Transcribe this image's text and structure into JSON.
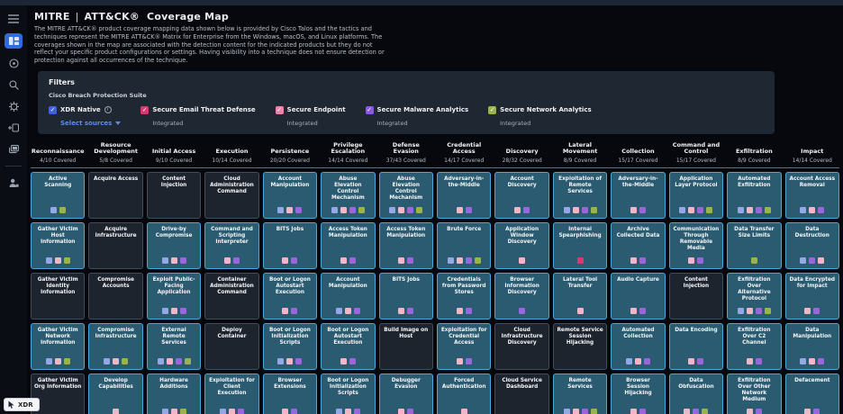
{
  "header": {
    "brand": "MITRE",
    "brand_sep": "|",
    "brand_product": "ATT&CK®",
    "title": "Coverage Map",
    "description": "The MITRE ATT&CK® product coverage mapping data shown below is provided by Cisco Talos and the tactics and techniques represent the MITRE ATT&CK® Matrix for Enterprise from the Windows, macOS, and Linux platforms. The coverages shown in the map are associated with the detection content for the indicated products but they do not reflect your specific product configurations or settings. Having visibility into a technique does not ensure detection or protection against all occurrences of the technique."
  },
  "sidebar": {
    "icons": [
      "menu-icon",
      "coverage-map-icon",
      "target-icon",
      "search-icon",
      "gear-icon",
      "add-device-icon",
      "layers-icon",
      "user-icon"
    ],
    "active_icon": "coverage-map-icon",
    "active_color": "#2f6ae0"
  },
  "filters": {
    "title": "Filters",
    "subtitle": "Cisco Breach Protection Suite",
    "sources": [
      {
        "label": "XDR Native",
        "color": "#3f64d9",
        "info": true,
        "link_label": "Select sources"
      },
      {
        "label": "Secure Email Threat Defense",
        "color": "#d63a71",
        "status": "Integrated"
      },
      {
        "label": "Secure Endpoint",
        "color": "#ee82a8",
        "status": "Integrated"
      },
      {
        "label": "Secure Malware Analytics",
        "color": "#8a57e0",
        "status": "Integrated"
      },
      {
        "label": "Secure Network Analytics",
        "color": "#9cb24d",
        "status": "Integrated"
      }
    ]
  },
  "product_colors": {
    "blue": "#94a7e6",
    "pink": "#f2b6c6",
    "purple": "#9a66dd",
    "green": "#9cb24d",
    "crimson": "#d63a71"
  },
  "cell_colors": {
    "covered_bg": "#2b5b71",
    "covered_border": "#4aa9d9",
    "uncovered_bg": "#1e242e",
    "uncovered_border": "#424c5a"
  },
  "cursor_badge": {
    "label": "XDR"
  },
  "matrix": {
    "columns": [
      {
        "name": "Reconnaissance",
        "covered": "4/10 Covered",
        "cells": [
          {
            "name": "Active Scanning",
            "covered": true,
            "products": [
              "blue",
              "green"
            ]
          },
          {
            "name": "Gather Victim Host Information",
            "covered": true,
            "products": [
              "blue",
              "pink",
              "green"
            ]
          },
          {
            "name": "Gather Victim Identity Information",
            "covered": false,
            "products": []
          },
          {
            "name": "Gather Victim Network Information",
            "covered": true,
            "products": [
              "blue",
              "pink",
              "green"
            ]
          },
          {
            "name": "Gather Victim Org Information",
            "covered": false,
            "products": []
          }
        ]
      },
      {
        "name": "Resource Development",
        "covered": "5/8 Covered",
        "cells": [
          {
            "name": "Acquire Access",
            "covered": false,
            "products": []
          },
          {
            "name": "Acquire Infrastructure",
            "covered": false,
            "products": []
          },
          {
            "name": "Compromise Accounts",
            "covered": false,
            "products": []
          },
          {
            "name": "Compromise Infrastructure",
            "covered": true,
            "products": [
              "blue",
              "pink",
              "green"
            ]
          },
          {
            "name": "Develop Capabilities",
            "covered": true,
            "products": [
              "pink"
            ]
          }
        ]
      },
      {
        "name": "Initial Access",
        "covered": "9/10 Covered",
        "cells": [
          {
            "name": "Content Injection",
            "covered": false,
            "products": []
          },
          {
            "name": "Drive-by Compromise",
            "covered": true,
            "products": [
              "blue",
              "pink",
              "purple"
            ]
          },
          {
            "name": "Exploit Public-Facing Application",
            "covered": true,
            "products": [
              "blue",
              "pink",
              "purple"
            ]
          },
          {
            "name": "External Remote Services",
            "covered": true,
            "products": [
              "blue",
              "pink",
              "purple",
              "green"
            ]
          },
          {
            "name": "Hardware Additions",
            "covered": true,
            "products": [
              "blue",
              "pink",
              "green"
            ]
          }
        ]
      },
      {
        "name": "Execution",
        "covered": "10/14 Covered",
        "cells": [
          {
            "name": "Cloud Administration Command",
            "covered": false,
            "products": []
          },
          {
            "name": "Command and Scripting Interpreter",
            "covered": true,
            "products": [
              "pink",
              "purple"
            ]
          },
          {
            "name": "Container Administration Command",
            "covered": false,
            "products": []
          },
          {
            "name": "Deploy Container",
            "covered": false,
            "products": []
          },
          {
            "name": "Exploitation for Client Execution",
            "covered": true,
            "products": [
              "blue",
              "pink",
              "purple"
            ]
          }
        ]
      },
      {
        "name": "Persistence",
        "covered": "20/20 Covered",
        "cells": [
          {
            "name": "Account Manipulation",
            "covered": true,
            "products": [
              "blue",
              "pink",
              "purple"
            ]
          },
          {
            "name": "BITS Jobs",
            "covered": true,
            "products": [
              "pink",
              "purple"
            ]
          },
          {
            "name": "Boot or Logon Autostart Execution",
            "covered": true,
            "products": [
              "pink",
              "purple"
            ]
          },
          {
            "name": "Boot or Logon Initialization Scripts",
            "covered": true,
            "products": [
              "blue",
              "pink",
              "purple"
            ]
          },
          {
            "name": "Browser Extensions",
            "covered": true,
            "products": [
              "pink",
              "purple"
            ]
          }
        ]
      },
      {
        "name": "Privilege Escalation",
        "covered": "14/14 Covered",
        "cells": [
          {
            "name": "Abuse Elevation Control Mechanism",
            "covered": true,
            "products": [
              "blue",
              "pink",
              "purple",
              "green"
            ]
          },
          {
            "name": "Access Token Manipulation",
            "covered": true,
            "products": [
              "pink",
              "purple"
            ]
          },
          {
            "name": "Account Manipulation",
            "covered": true,
            "products": [
              "blue",
              "pink",
              "purple"
            ]
          },
          {
            "name": "Boot or Logon Autostart Execution",
            "covered": true,
            "products": [
              "pink",
              "purple"
            ]
          },
          {
            "name": "Boot or Logon Initialization Scripts",
            "covered": true,
            "products": [
              "blue",
              "pink",
              "purple"
            ]
          }
        ]
      },
      {
        "name": "Defense Evasion",
        "covered": "37/43 Covered",
        "cells": [
          {
            "name": "Abuse Elevation Control Mechanism",
            "covered": true,
            "products": [
              "blue",
              "pink",
              "purple",
              "green"
            ]
          },
          {
            "name": "Access Token Manipulation",
            "covered": true,
            "products": [
              "pink",
              "purple"
            ]
          },
          {
            "name": "BITS Jobs",
            "covered": true,
            "products": [
              "pink",
              "purple"
            ]
          },
          {
            "name": "Build Image on Host",
            "covered": false,
            "products": []
          },
          {
            "name": "Debugger Evasion",
            "covered": true,
            "products": [
              "pink",
              "purple"
            ]
          }
        ]
      },
      {
        "name": "Credential Access",
        "covered": "14/17 Covered",
        "cells": [
          {
            "name": "Adversary-in-the-Middle",
            "covered": true,
            "products": [
              "pink",
              "purple"
            ]
          },
          {
            "name": "Brute Force",
            "covered": true,
            "products": [
              "blue",
              "pink",
              "purple",
              "green"
            ]
          },
          {
            "name": "Credentials from Password Stores",
            "covered": true,
            "products": [
              "pink",
              "purple"
            ]
          },
          {
            "name": "Exploitation for Credential Access",
            "covered": true,
            "products": [
              "pink",
              "purple"
            ]
          },
          {
            "name": "Forced Authentication",
            "covered": true,
            "products": [
              "pink"
            ]
          }
        ]
      },
      {
        "name": "Discovery",
        "covered": "28/32 Covered",
        "cells": [
          {
            "name": "Account Discovery",
            "covered": true,
            "products": [
              "pink",
              "purple"
            ]
          },
          {
            "name": "Application Window Discovery",
            "covered": true,
            "products": [
              "pink"
            ]
          },
          {
            "name": "Browser Information Discovery",
            "covered": true,
            "products": [
              "purple"
            ]
          },
          {
            "name": "Cloud Infrastructure Discovery",
            "covered": false,
            "products": []
          },
          {
            "name": "Cloud Service Dashboard",
            "covered": false,
            "products": []
          }
        ]
      },
      {
        "name": "Lateral Movement",
        "covered": "8/9 Covered",
        "cells": [
          {
            "name": "Exploitation of Remote Services",
            "covered": true,
            "products": [
              "blue",
              "pink",
              "purple",
              "green"
            ]
          },
          {
            "name": "Internal Spearphishing",
            "covered": true,
            "products": [
              "crimson"
            ]
          },
          {
            "name": "Lateral Tool Transfer",
            "covered": true,
            "products": [
              "pink"
            ]
          },
          {
            "name": "Remote Service Session Hijacking",
            "covered": false,
            "products": []
          },
          {
            "name": "Remote Services",
            "covered": true,
            "products": [
              "blue",
              "pink",
              "purple",
              "green"
            ]
          }
        ]
      },
      {
        "name": "Collection",
        "covered": "15/17 Covered",
        "cells": [
          {
            "name": "Adversary-in-the-Middle",
            "covered": true,
            "products": [
              "pink",
              "purple"
            ]
          },
          {
            "name": "Archive Collected Data",
            "covered": true,
            "products": [
              "pink",
              "purple"
            ]
          },
          {
            "name": "Audio Capture",
            "covered": true,
            "products": [
              "pink",
              "purple"
            ]
          },
          {
            "name": "Automated Collection",
            "covered": true,
            "products": [
              "blue",
              "pink",
              "purple"
            ]
          },
          {
            "name": "Browser Session Hijacking",
            "covered": true,
            "products": [
              "pink",
              "purple"
            ]
          }
        ]
      },
      {
        "name": "Command and Control",
        "covered": "15/17 Covered",
        "cells": [
          {
            "name": "Application Layer Protocol",
            "covered": true,
            "products": [
              "blue",
              "pink",
              "purple",
              "green"
            ]
          },
          {
            "name": "Communication Through Removable Media",
            "covered": true,
            "products": [
              "pink",
              "purple"
            ]
          },
          {
            "name": "Content Injection",
            "covered": false,
            "products": []
          },
          {
            "name": "Data Encoding",
            "covered": true,
            "products": [
              "pink",
              "purple"
            ]
          },
          {
            "name": "Data Obfuscation",
            "covered": true,
            "products": [
              "pink",
              "purple",
              "green"
            ]
          }
        ]
      },
      {
        "name": "Exfiltration",
        "covered": "8/9 Covered",
        "cells": [
          {
            "name": "Automated Exfiltration",
            "covered": true,
            "products": [
              "blue",
              "pink",
              "purple",
              "green"
            ]
          },
          {
            "name": "Data Transfer Size Limits",
            "covered": true,
            "products": [
              "green"
            ]
          },
          {
            "name": "Exfiltration Over Alternative Protocol",
            "covered": true,
            "products": [
              "blue",
              "pink",
              "purple",
              "green"
            ]
          },
          {
            "name": "Exfiltration Over C2 Channel",
            "covered": true,
            "products": [
              "pink",
              "purple"
            ]
          },
          {
            "name": "Exfiltration Over Other Network Medium",
            "covered": true,
            "products": [
              "pink",
              "purple"
            ]
          }
        ]
      },
      {
        "name": "Impact",
        "covered": "14/14 Covered",
        "cells": [
          {
            "name": "Account Access Removal",
            "covered": true,
            "products": [
              "blue",
              "pink",
              "purple"
            ]
          },
          {
            "name": "Data Destruction",
            "covered": true,
            "products": [
              "blue",
              "purple",
              "pink"
            ]
          },
          {
            "name": "Data Encrypted for Impact",
            "covered": true,
            "products": [
              "pink",
              "purple"
            ]
          },
          {
            "name": "Data Manipulation",
            "covered": true,
            "products": [
              "blue",
              "pink",
              "purple"
            ]
          },
          {
            "name": "Defacement",
            "covered": true,
            "products": [
              "pink",
              "purple"
            ]
          }
        ]
      }
    ]
  }
}
